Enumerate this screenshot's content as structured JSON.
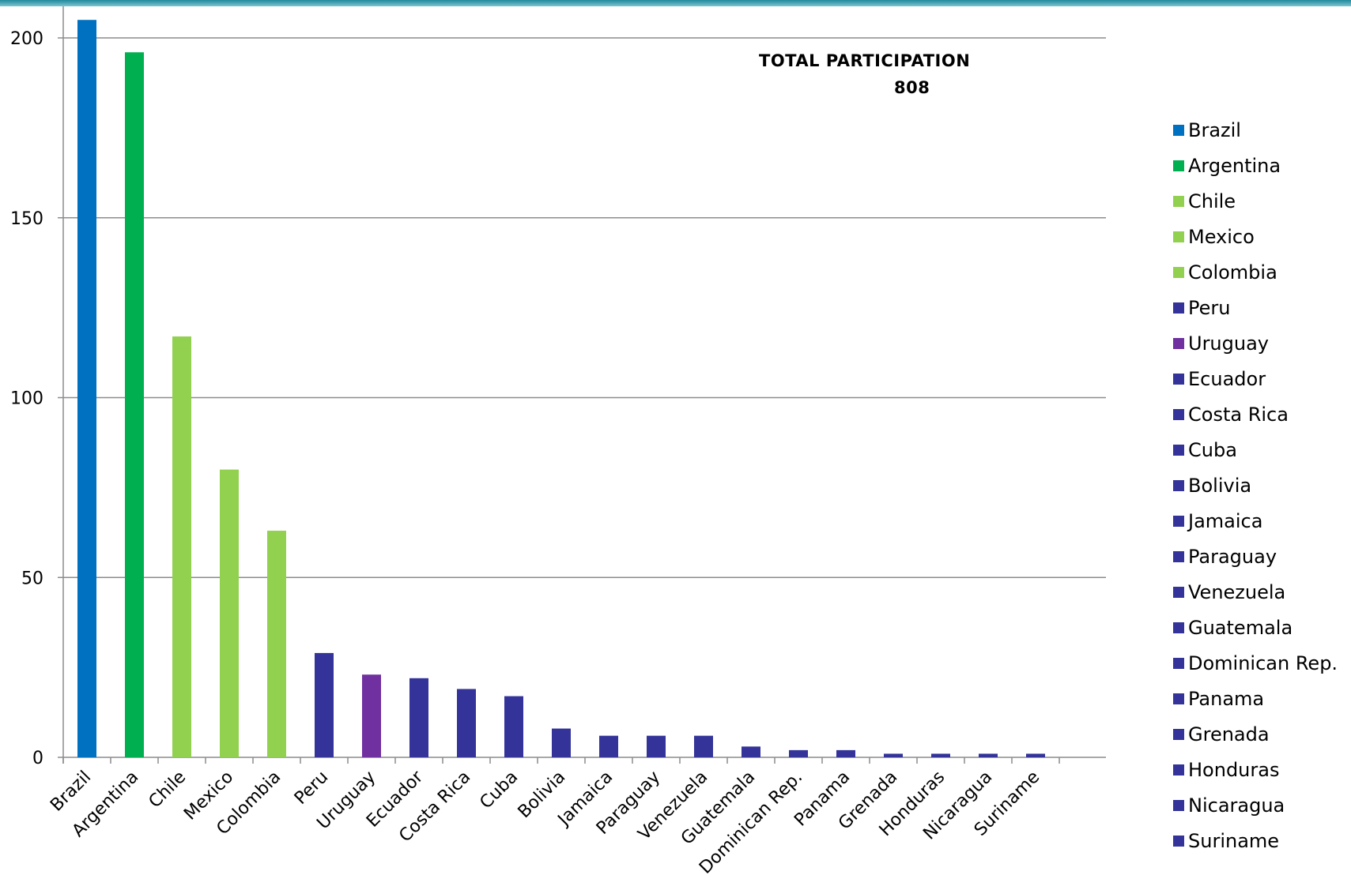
{
  "chart_data": {
    "type": "bar",
    "annotation": {
      "title": "TOTAL PARTICIPATION",
      "value": "808"
    },
    "categories": [
      "Brazil",
      "Argentina",
      "Chile",
      "Mexico",
      "Colombia",
      "Peru",
      "Uruguay",
      "Ecuador",
      "Costa Rica",
      "Cuba",
      "Bolivia",
      "Jamaica",
      "Paraguay",
      "Venezuela",
      "Guatemala",
      "Dominican Rep.",
      "Panama",
      "Grenada",
      "Honduras",
      "Nicaragua",
      "Suriname"
    ],
    "values": [
      205,
      196,
      117,
      80,
      63,
      29,
      23,
      22,
      19,
      17,
      8,
      6,
      6,
      6,
      3,
      2,
      2,
      1,
      1,
      1,
      1
    ],
    "colors": [
      "#0070C0",
      "#00B050",
      "#92D050",
      "#92D050",
      "#92D050",
      "#333399",
      "#7030A0",
      "#333399",
      "#333399",
      "#333399",
      "#333399",
      "#333399",
      "#333399",
      "#333399",
      "#333399",
      "#333399",
      "#333399",
      "#333399",
      "#333399",
      "#333399",
      "#333399"
    ],
    "ylim": [
      0,
      205
    ],
    "yticks": [
      0,
      50,
      100,
      150,
      200
    ],
    "grid": true,
    "legend_position": "right",
    "xlabel": "",
    "ylabel": ""
  }
}
